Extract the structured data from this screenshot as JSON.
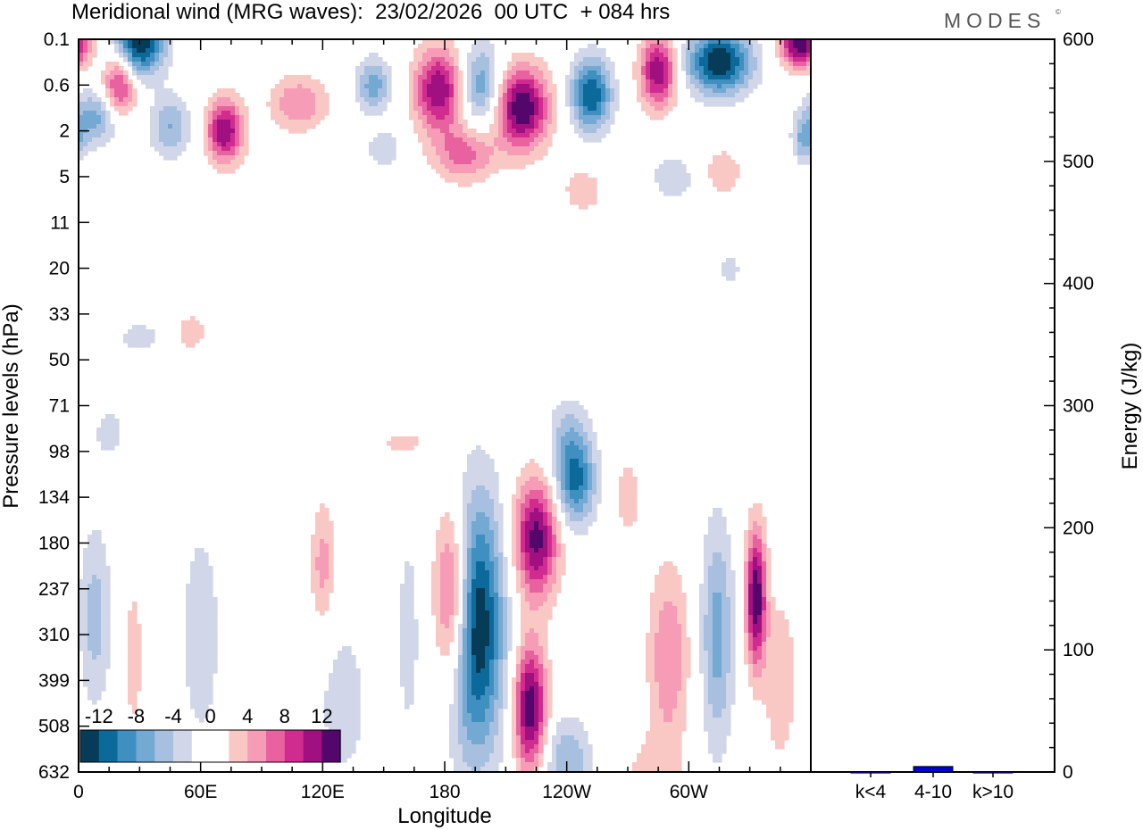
{
  "header": {
    "title": "Meridional wind (MRG waves):  23/02/2026  00 UTC  + 084 hrs",
    "brand": "MODES",
    "brand_mark": "©"
  },
  "colors": {
    "neg": [
      "#063c58",
      "#0b6a9a",
      "#3f8fc0",
      "#73a9d2",
      "#a7c0df",
      "#d1d6e8"
    ],
    "pos": [
      "#f9c8c4",
      "#f79cb6",
      "#e8629f",
      "#d02c8f",
      "#a11080",
      "#53076b"
    ],
    "bar": "#0000d0"
  },
  "chart_data": [
    {
      "type": "heatmap",
      "title": "Meridional wind (MRG waves):  23/02/2026  00 UTC  + 084 hrs",
      "xlabel": "Longitude",
      "ylabel": "Pressure levels (hPa)",
      "x_ticks": [
        "0",
        "60E",
        "120E",
        "180",
        "120W",
        "60W"
      ],
      "y_ticks": [
        "0.1",
        "0.6",
        "2",
        "5",
        "11",
        "20",
        "33",
        "50",
        "71",
        "98",
        "134",
        "180",
        "237",
        "310",
        "399",
        "508",
        "632"
      ],
      "colorbar": {
        "labels": [
          "-12",
          "-8",
          "-4",
          "0",
          "4",
          "8",
          "12"
        ],
        "levels": [
          -14,
          -12,
          -10,
          -8,
          -6,
          -4,
          -2,
          2,
          4,
          6,
          8,
          10,
          12,
          14
        ]
      },
      "features": [
        {
          "lon": 195,
          "level": 12.8,
          "value": -15,
          "sx": 14,
          "sy": 2.8
        },
        {
          "lon": 184,
          "level": 12.2,
          "value": 12,
          "sx": 9,
          "sy": 2.0
        },
        {
          "lon": 225,
          "level": 10.9,
          "value": 13,
          "sx": 11,
          "sy": 1.3
        },
        {
          "lon": 222,
          "level": 14.6,
          "value": 14,
          "sx": 8,
          "sy": 1.4
        },
        {
          "lon": 244,
          "level": 9.6,
          "value": -11,
          "sx": 10,
          "sy": 1.0
        },
        {
          "lon": 162,
          "level": 13.0,
          "value": -3,
          "sx": 6,
          "sy": 2.5
        },
        {
          "lon": 333,
          "level": 12.2,
          "value": 14,
          "sx": 5,
          "sy": 1.5
        },
        {
          "lon": 314,
          "level": 13.0,
          "value": -7,
          "sx": 8,
          "sy": 2.5
        },
        {
          "lon": 290,
          "level": 13.5,
          "value": 6,
          "sx": 10,
          "sy": 2.0
        },
        {
          "lon": 270,
          "level": 10.0,
          "value": 3,
          "sx": 8,
          "sy": 1.0
        },
        {
          "lon": 8,
          "level": 12.6,
          "value": -5,
          "sx": 8,
          "sy": 2.0
        },
        {
          "lon": 27,
          "level": 13.5,
          "value": 3,
          "sx": 5,
          "sy": 2.0
        },
        {
          "lon": 120,
          "level": 11.5,
          "value": 5,
          "sx": 6,
          "sy": 1.4
        },
        {
          "lon": 240,
          "level": 15.8,
          "value": -6,
          "sx": 12,
          "sy": 1.0
        },
        {
          "lon": 282,
          "level": 16.0,
          "value": 3,
          "sx": 14,
          "sy": 0.8
        },
        {
          "lon": 345,
          "level": 14.0,
          "value": 4,
          "sx": 8,
          "sy": 1.8
        },
        {
          "lon": 60,
          "level": 13.0,
          "value": -3,
          "sx": 12,
          "sy": 3.0
        },
        {
          "lon": 130,
          "level": 14.5,
          "value": -3,
          "sx": 14,
          "sy": 2.0
        },
        {
          "lon": 315,
          "level": 0.5,
          "value": -14,
          "sx": 16,
          "sy": 0.7
        },
        {
          "lon": 285,
          "level": 0.7,
          "value": 12,
          "sx": 9,
          "sy": 0.8
        },
        {
          "lon": 252,
          "level": 1.2,
          "value": -12,
          "sx": 10,
          "sy": 0.8
        },
        {
          "lon": 218,
          "level": 1.5,
          "value": 14,
          "sx": 13,
          "sy": 0.9
        },
        {
          "lon": 198,
          "level": 1.0,
          "value": -8,
          "sx": 10,
          "sy": 0.9
        },
        {
          "lon": 177,
          "level": 1.1,
          "value": 12,
          "sx": 12,
          "sy": 0.9
        },
        {
          "lon": 145,
          "level": 1.0,
          "value": -7,
          "sx": 9,
          "sy": 0.6
        },
        {
          "lon": 108,
          "level": 1.4,
          "value": 6,
          "sx": 14,
          "sy": 0.6
        },
        {
          "lon": 72,
          "level": 2.0,
          "value": 12,
          "sx": 9,
          "sy": 0.7
        },
        {
          "lon": 45,
          "level": 1.9,
          "value": -6,
          "sx": 10,
          "sy": 0.7
        },
        {
          "lon": 20,
          "level": 1.0,
          "value": 10,
          "sx": 8,
          "sy": 0.7
        },
        {
          "lon": 30,
          "level": 0.1,
          "value": -14,
          "sx": 12,
          "sy": 0.7
        },
        {
          "lon": 8,
          "level": 1.7,
          "value": -7,
          "sx": 12,
          "sy": 0.6
        },
        {
          "lon": 355,
          "level": 0.1,
          "value": 14,
          "sx": 10,
          "sy": 0.5
        },
        {
          "lon": 315,
          "level": 2.9,
          "value": 4,
          "sx": 12,
          "sy": 0.6
        },
        {
          "lon": 357,
          "level": 2.2,
          "value": -6,
          "sx": 6,
          "sy": 0.5
        },
        {
          "lon": 190,
          "level": 2.5,
          "value": 7,
          "sx": 15,
          "sy": 0.6
        },
        {
          "lon": 150,
          "level": 2.4,
          "value": -4,
          "sx": 8,
          "sy": 0.4
        },
        {
          "lon": 248,
          "level": 3.3,
          "value": 3,
          "sx": 12,
          "sy": 0.6
        },
        {
          "lon": 295,
          "level": 3.0,
          "value": -3,
          "sx": 18,
          "sy": 0.7
        },
        {
          "lon": 55,
          "level": 6.4,
          "value": 3,
          "sx": 10,
          "sy": 0.5
        },
        {
          "lon": 30,
          "level": 6.5,
          "value": -3,
          "sx": 12,
          "sy": 0.4
        },
        {
          "lon": 160,
          "level": 8.8,
          "value": 3,
          "sx": 12,
          "sy": 0.3
        },
        {
          "lon": 240,
          "level": 8.5,
          "value": -3,
          "sx": 10,
          "sy": 0.8
        },
        {
          "lon": 320,
          "level": 5.0,
          "value": -3,
          "sx": 6,
          "sy": 0.4
        },
        {
          "lon": 15,
          "level": 8.6,
          "value": -3,
          "sx": 8,
          "sy": 0.6
        }
      ]
    },
    {
      "type": "bar",
      "categories": [
        "k<4",
        "4-10",
        "k>10"
      ],
      "values": [
        0.3,
        4.5,
        0.3
      ],
      "ylabel": "Energy (J/kg)",
      "ylim": [
        0,
        600
      ],
      "y_ticks": [
        "0",
        "100",
        "200",
        "300",
        "400",
        "500",
        "600"
      ]
    }
  ]
}
